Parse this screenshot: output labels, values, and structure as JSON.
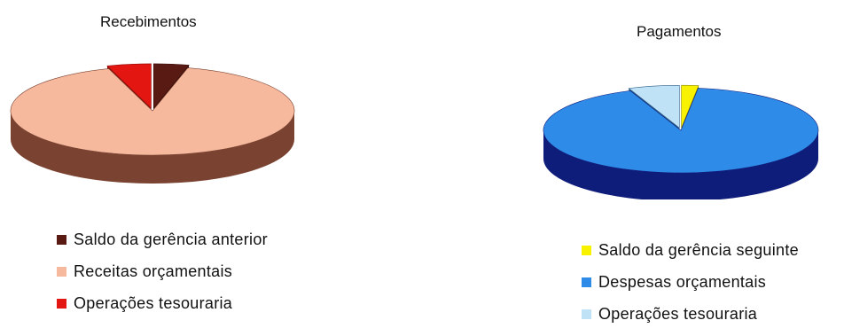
{
  "chart_data": [
    {
      "type": "pie",
      "title": "Recebimentos",
      "series": [
        {
          "label": "Saldo da gerência anterior",
          "value": 4,
          "color": "#5a1a14",
          "side": "#3d0f0b",
          "explode": true
        },
        {
          "label": "Receitas orçamentais",
          "value": 91,
          "color": "#f6b99e",
          "side": "#7a4230",
          "explode": false
        },
        {
          "label": "Operações tesouraria",
          "value": 5,
          "color": "#e31612",
          "side": "#8f0c08",
          "explode": true
        }
      ],
      "legend_position": "bottom"
    },
    {
      "type": "pie",
      "title": "Pagamentos",
      "series": [
        {
          "label": "Saldo da gerência seguinte",
          "value": 2,
          "color": "#f8f200",
          "side": "#8d8a00",
          "explode": true
        },
        {
          "label": "Despesas orçamentais",
          "value": 92,
          "color": "#2f8be8",
          "side": "#0e1c7a",
          "explode": false
        },
        {
          "label": "Operações tesouraria",
          "value": 6,
          "color": "#bfe2f7",
          "side": "#2d5f86",
          "explode": true
        }
      ],
      "legend_position": "bottom"
    }
  ]
}
